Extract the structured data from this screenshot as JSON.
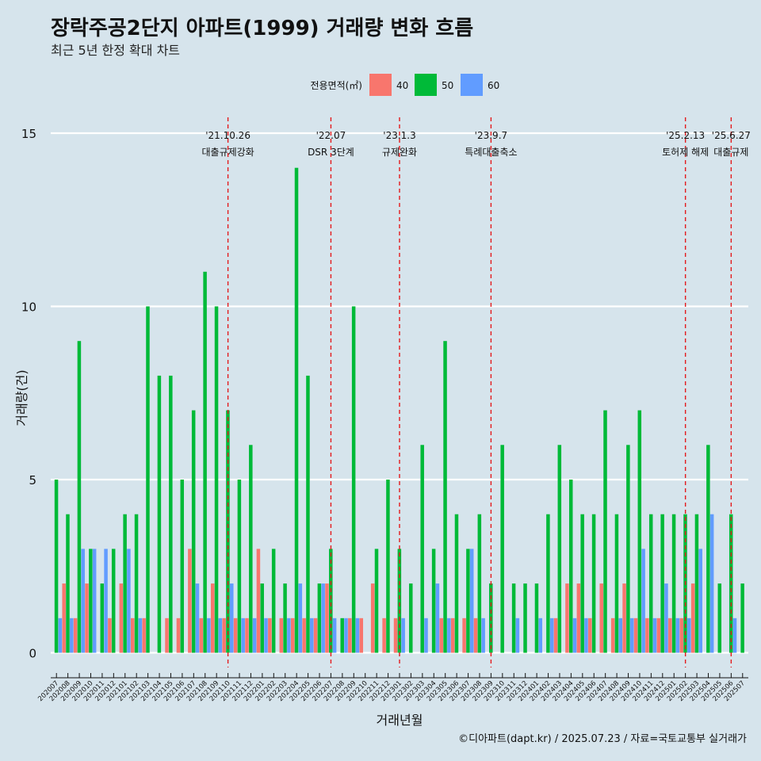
{
  "title": "장락주공2단지 아파트(1999) 거래량 변화 흐름",
  "subtitle": "최근 5년 한정 확대 차트",
  "caption": "©디아파트(dapt.kr) / 2025.07.23 / 자료=국토교통부 실거래가",
  "colors": {
    "background": "#d6e4ec",
    "grid": "#ffffff",
    "event_line": "#e41a1c",
    "series": {
      "40": "#f8766d",
      "50": "#00ba38",
      "60": "#619cff"
    }
  },
  "chart_data": {
    "type": "bar",
    "title": "장락주공2단지 아파트(1999) 거래량 변화 흐름",
    "subtitle": "최근 5년 한정 확대 차트",
    "xlabel": "거래년월",
    "ylabel": "거래량(건)",
    "ylim": [
      0,
      15.5
    ],
    "yticks": [
      0,
      5,
      10,
      15
    ],
    "grid": true,
    "legend": {
      "title": "전용면적(㎡)",
      "position": "top"
    },
    "categories": [
      "202007",
      "202008",
      "202009",
      "202010",
      "202011",
      "202012",
      "202101",
      "202102",
      "202103",
      "202104",
      "202105",
      "202106",
      "202107",
      "202108",
      "202109",
      "202110",
      "202111",
      "202112",
      "202201",
      "202202",
      "202203",
      "202204",
      "202205",
      "202206",
      "202207",
      "202208",
      "202209",
      "202210",
      "202211",
      "202212",
      "202301",
      "202302",
      "202303",
      "202304",
      "202305",
      "202306",
      "202307",
      "202308",
      "202309",
      "202310",
      "202311",
      "202312",
      "202401",
      "202402",
      "202403",
      "202404",
      "202405",
      "202406",
      "202407",
      "202408",
      "202409",
      "202410",
      "202411",
      "202412",
      "202501",
      "202502",
      "202503",
      "202504",
      "202505",
      "202506",
      "202507"
    ],
    "series": [
      {
        "name": "40",
        "values": [
          0,
          2,
          1,
          2,
          0,
          1,
          2,
          1,
          1,
          0,
          1,
          1,
          3,
          1,
          2,
          1,
          1,
          1,
          3,
          1,
          1,
          1,
          1,
          1,
          2,
          0,
          1,
          1,
          2,
          1,
          1,
          0,
          0,
          0,
          1,
          1,
          1,
          1,
          0,
          0,
          0,
          0,
          0,
          0,
          1,
          2,
          2,
          1,
          2,
          1,
          2,
          1,
          1,
          1,
          1,
          1,
          2,
          0,
          0,
          0,
          0
        ]
      },
      {
        "name": "50",
        "values": [
          5,
          4,
          9,
          3,
          2,
          3,
          4,
          4,
          10,
          8,
          8,
          5,
          7,
          11,
          10,
          7,
          5,
          6,
          2,
          3,
          2,
          14,
          8,
          2,
          3,
          1,
          10,
          0,
          3,
          5,
          3,
          2,
          6,
          3,
          9,
          4,
          3,
          4,
          2,
          6,
          2,
          2,
          2,
          4,
          6,
          5,
          4,
          4,
          7,
          4,
          6,
          7,
          4,
          4,
          4,
          4,
          4,
          6,
          2,
          4,
          2
        ]
      },
      {
        "name": "60",
        "values": [
          1,
          1,
          3,
          3,
          3,
          0,
          3,
          1,
          0,
          0,
          0,
          0,
          2,
          1,
          1,
          2,
          1,
          1,
          1,
          0,
          1,
          2,
          1,
          2,
          1,
          1,
          1,
          0,
          0,
          0,
          1,
          0,
          1,
          2,
          1,
          0,
          3,
          1,
          0,
          0,
          1,
          0,
          1,
          1,
          0,
          1,
          1,
          0,
          0,
          1,
          1,
          3,
          1,
          2,
          1,
          1,
          3,
          4,
          0,
          1,
          0
        ]
      }
    ],
    "events": [
      {
        "date_label": "'21.10.26",
        "text": "대출규제강화",
        "category": "202110"
      },
      {
        "date_label": "'22.07",
        "text": "DSR 3단계",
        "category": "202207"
      },
      {
        "date_label": "'23.1.3",
        "text": "규제완화",
        "category": "202301"
      },
      {
        "date_label": "'23.9.7",
        "text": "특례대출축소",
        "category": "202309"
      },
      {
        "date_label": "'25.2.13",
        "text": "토허제 해제",
        "category": "202502"
      },
      {
        "date_label": "'25.6.27",
        "text": "대출규제",
        "category": "202506"
      }
    ]
  }
}
